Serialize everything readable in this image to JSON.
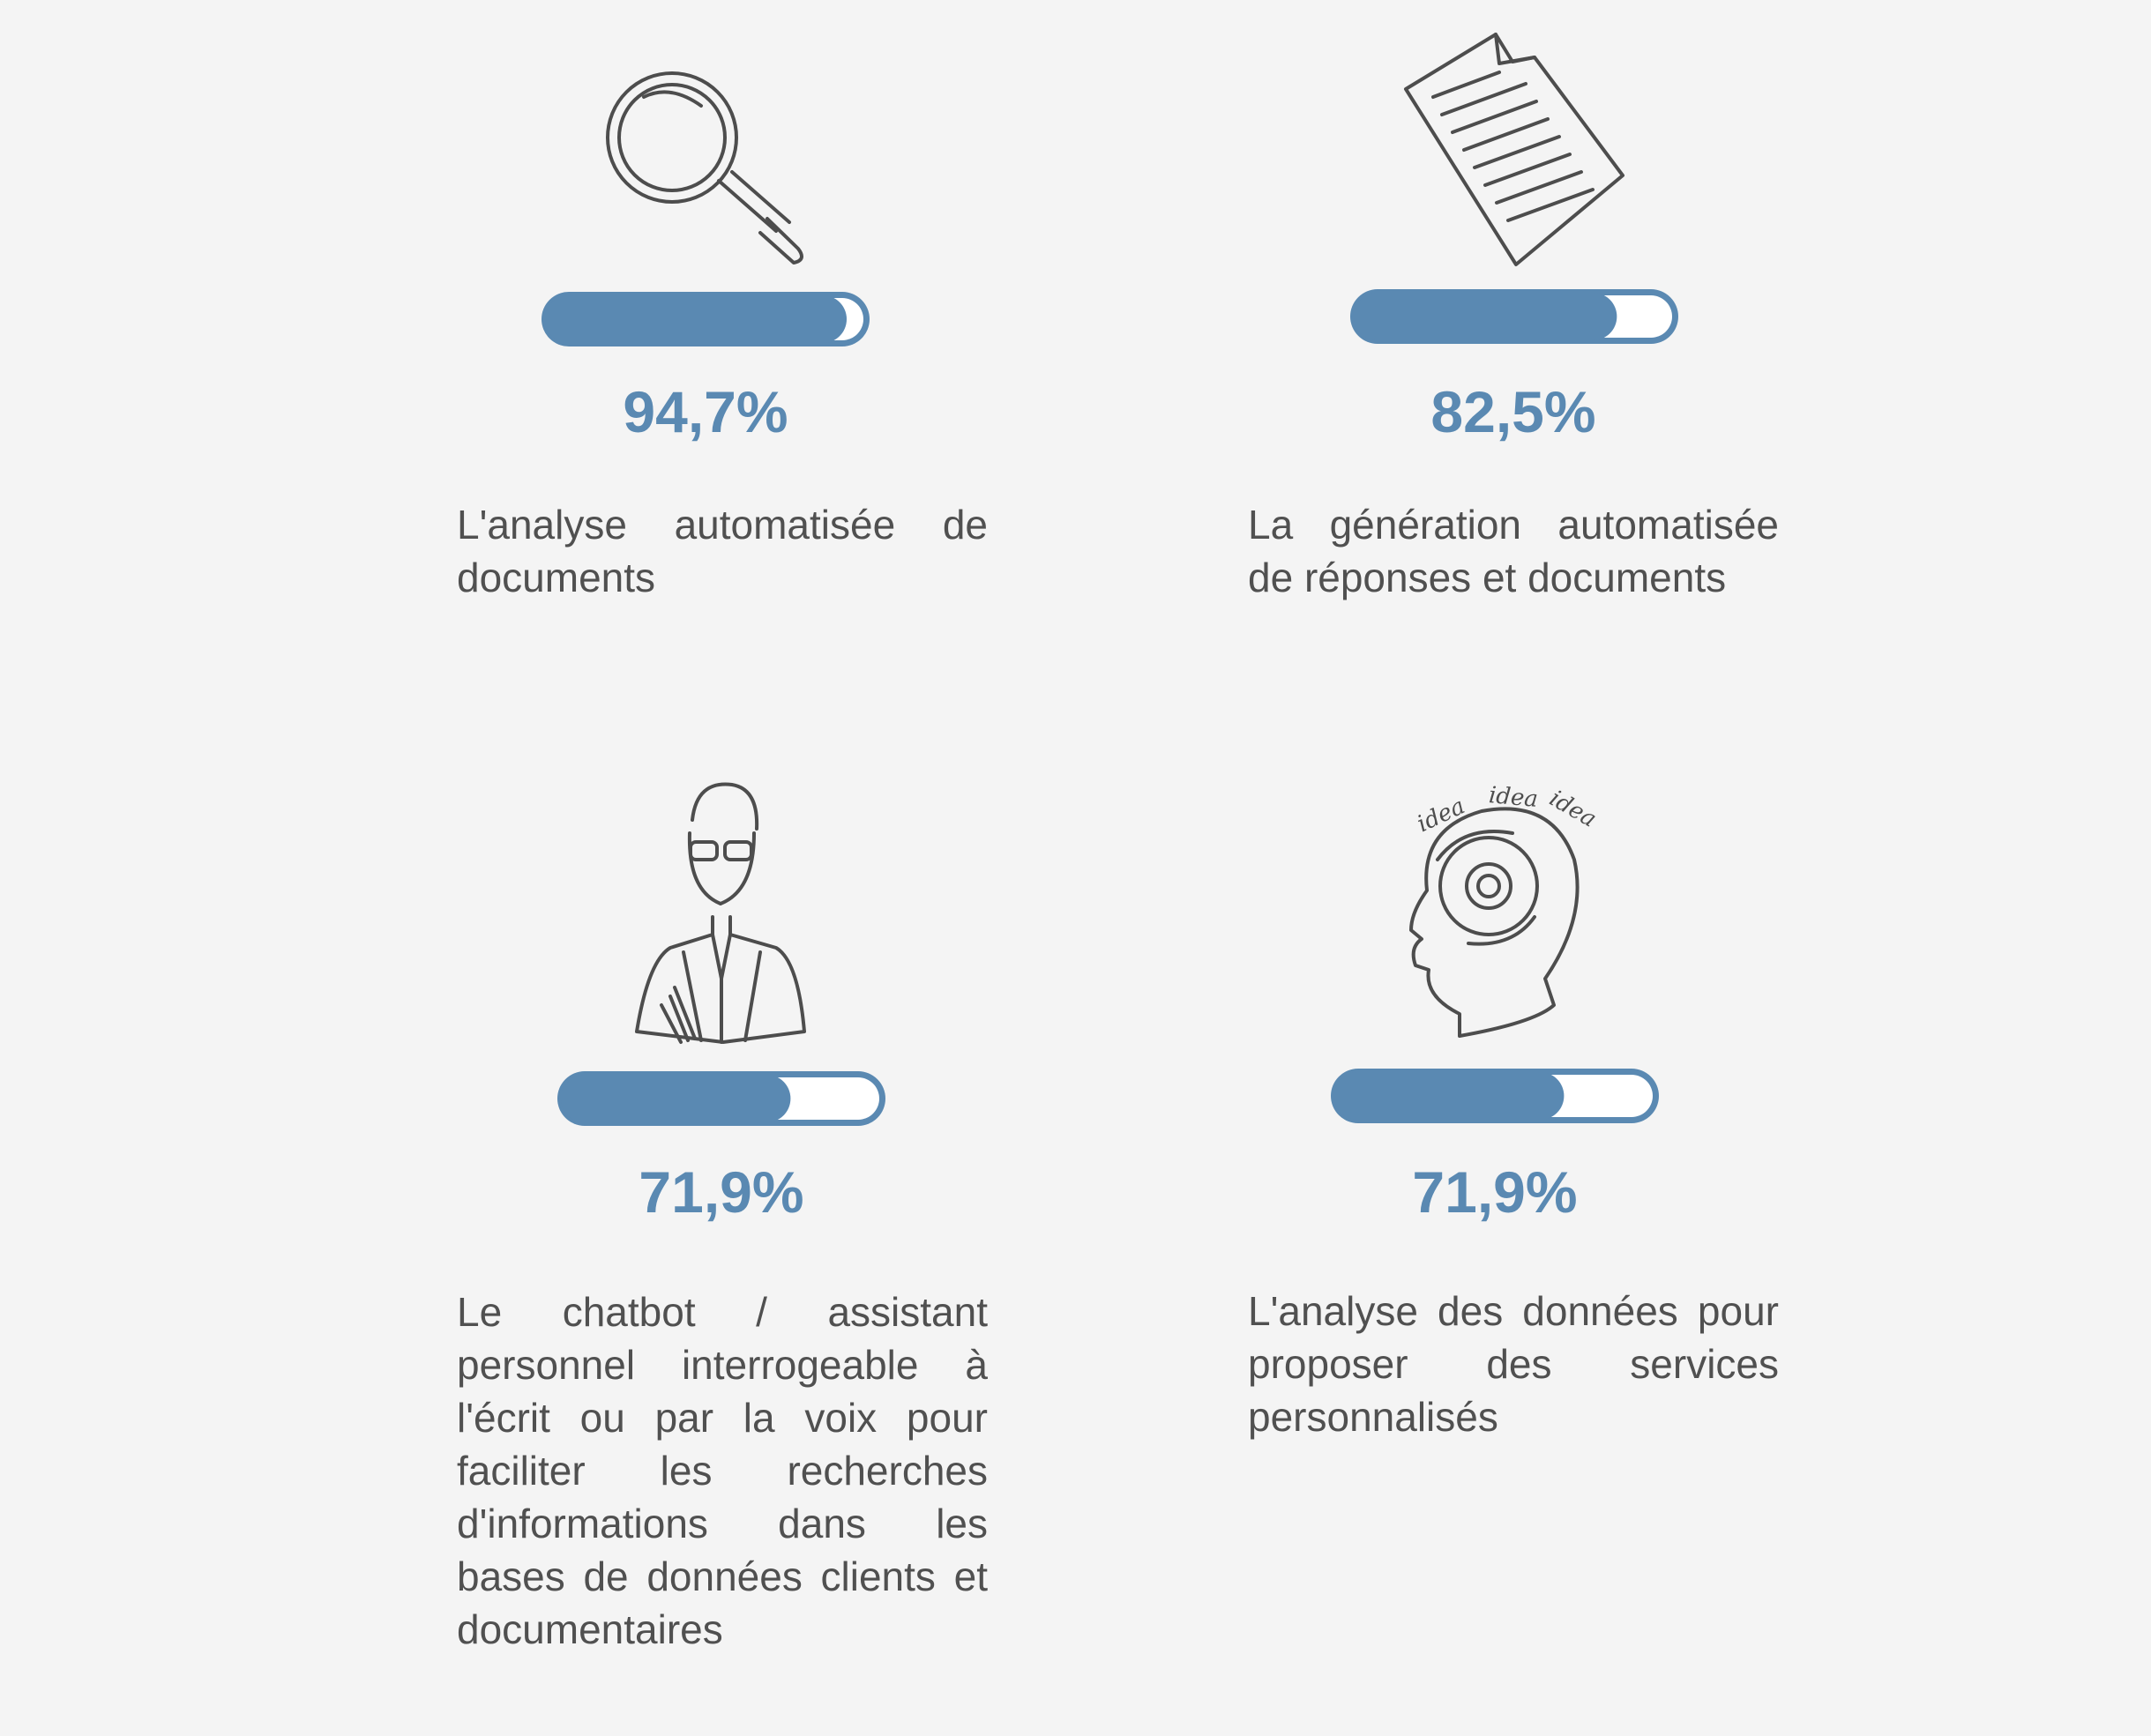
{
  "xlim": [
    0,
    100
  ],
  "items": [
    {
      "value": 94.7,
      "value_label": "94,7%",
      "description": "L'analyse automatisée de documents"
    },
    {
      "value": 82.5,
      "value_label": "82,5%",
      "description": "La génération automatisée de réponses et documents"
    },
    {
      "value": 71.9,
      "value_label": "71,9%",
      "description": "Le chatbot / assistant personnel interrogeable à l'écrit ou par la voix pour faciliter les recherches d'informations dans les bases de données clients et documentaires"
    },
    {
      "value": 71.9,
      "value_label": "71,9%",
      "description": "L'analyse des données pour proposer des services personnalisés",
      "icon_text": [
        "idea",
        "idea",
        "idea"
      ]
    }
  ]
}
